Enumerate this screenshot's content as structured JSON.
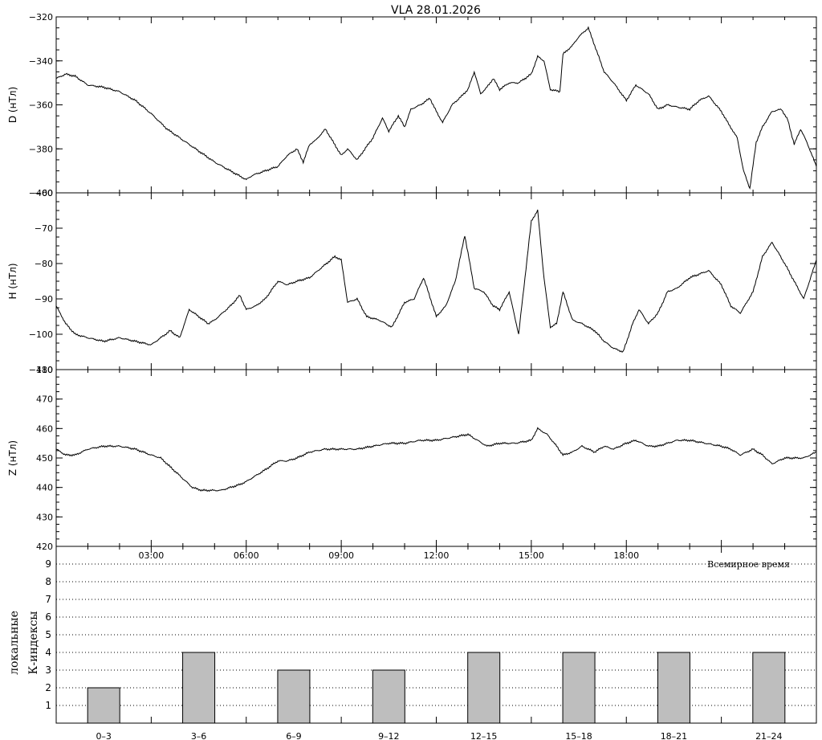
{
  "title": "VLA   28.01.2026",
  "chart_data": [
    {
      "type": "line",
      "ylabel": "D (нТл)",
      "ylim": [
        -400,
        -320
      ],
      "yticks": [
        -400,
        -380,
        -360,
        -340,
        -320
      ],
      "xlim": [
        0,
        24
      ],
      "series": [
        {
          "x": [
            0,
            0.3,
            0.6,
            1,
            1.5,
            2,
            2.5,
            3,
            3.5,
            4,
            4.5,
            5,
            5.5,
            6,
            6.2,
            6.4,
            6.6,
            7,
            7.3,
            7.6,
            7.8,
            8,
            8.2,
            8.5,
            9,
            9.2,
            9.5,
            10,
            10.3,
            10.5,
            10.8,
            11,
            11.2,
            11.5,
            11.8,
            12,
            12.2,
            12.5,
            12.8,
            13,
            13.2,
            13.4,
            13.6,
            13.8,
            14,
            14.3,
            14.6,
            15,
            15.2,
            15.4,
            15.6,
            15.9,
            16,
            16.3,
            16.5,
            16.8,
            17,
            17.3,
            17.6,
            18,
            18.3,
            18.7,
            19,
            19.3,
            19.6,
            20,
            20.3,
            20.6,
            21,
            21.2,
            21.5,
            21.7,
            21.9,
            22.1,
            22.3,
            22.6,
            22.9,
            23.1,
            23.3,
            23.5,
            23.7,
            24
          ],
          "y": [
            -348,
            -346,
            -347,
            -351,
            -352,
            -354,
            -358,
            -364,
            -371,
            -376,
            -381,
            -386,
            -390,
            -394,
            -392,
            -391,
            -390,
            -388,
            -383,
            -380,
            -386,
            -378,
            -376,
            -371,
            -383,
            -380,
            -385,
            -375,
            -366,
            -372,
            -365,
            -370,
            -362,
            -360,
            -357,
            -363,
            -368,
            -360,
            -356,
            -353,
            -345,
            -355,
            -352,
            -348,
            -353,
            -350,
            -350,
            -346,
            -338,
            -340,
            -353,
            -354,
            -337,
            -333,
            -329,
            -325,
            -333,
            -345,
            -350,
            -358,
            -351,
            -355,
            -362,
            -360,
            -361,
            -362,
            -358,
            -356,
            -363,
            -368,
            -375,
            -390,
            -398,
            -377,
            -370,
            -363,
            -362,
            -367,
            -378,
            -371,
            -377,
            -388
          ]
        }
      ]
    },
    {
      "type": "line",
      "ylabel": "H (нТл)",
      "ylim": [
        -110,
        -60
      ],
      "yticks": [
        -110,
        -100,
        -90,
        -80,
        -70,
        -60
      ],
      "xlim": [
        0,
        24
      ],
      "series": [
        {
          "x": [
            0,
            0.3,
            0.6,
            1,
            1.5,
            2,
            2.5,
            3,
            3.3,
            3.6,
            3.9,
            4.2,
            4.5,
            4.8,
            5,
            5.5,
            5.8,
            6,
            6.3,
            6.6,
            7,
            7.3,
            7.6,
            8,
            8.4,
            8.8,
            9,
            9.2,
            9.5,
            9.8,
            10.2,
            10.6,
            11,
            11.3,
            11.6,
            12,
            12.3,
            12.6,
            12.9,
            13.2,
            13.5,
            13.8,
            14,
            14.3,
            14.6,
            15,
            15.2,
            15.4,
            15.6,
            15.8,
            16,
            16.3,
            16.6,
            17,
            17.3,
            17.6,
            17.9,
            18.2,
            18.4,
            18.7,
            19,
            19.3,
            19.6,
            20,
            20.3,
            20.6,
            21,
            21.3,
            21.6,
            22,
            22.3,
            22.6,
            23,
            23.3,
            23.6,
            24
          ],
          "y": [
            -92,
            -97,
            -100,
            -101,
            -102,
            -101,
            -102,
            -103,
            -101,
            -99,
            -101,
            -93,
            -95,
            -97,
            -96,
            -92,
            -89,
            -93,
            -92,
            -90,
            -85,
            -86,
            -85,
            -84,
            -81,
            -78,
            -79,
            -91,
            -90,
            -95,
            -96,
            -98,
            -91,
            -90,
            -84,
            -95,
            -92,
            -85,
            -72,
            -87,
            -88,
            -92,
            -93,
            -88,
            -100,
            -68,
            -65,
            -84,
            -98,
            -97,
            -88,
            -96,
            -97,
            -99,
            -102,
            -104,
            -105,
            -97,
            -93,
            -97,
            -94,
            -88,
            -87,
            -84,
            -83,
            -82,
            -86,
            -92,
            -94,
            -88,
            -78,
            -74,
            -80,
            -85,
            -90,
            -79
          ]
        }
      ]
    },
    {
      "type": "line",
      "ylabel": "Z (нТл)",
      "ylim": [
        420,
        480
      ],
      "yticks": [
        420,
        430,
        440,
        450,
        460,
        470,
        480
      ],
      "xlim": [
        0,
        24
      ],
      "series": [
        {
          "x": [
            0,
            0.3,
            0.6,
            1,
            1.5,
            2,
            2.5,
            3,
            3.3,
            3.6,
            4,
            4.3,
            4.6,
            4.9,
            5.2,
            5.5,
            5.8,
            6,
            6.3,
            6.6,
            7,
            7.3,
            7.6,
            8,
            8.5,
            9,
            9.5,
            10,
            10.5,
            11,
            11.5,
            12,
            12.5,
            13,
            13.3,
            13.6,
            14,
            14.5,
            15,
            15.2,
            15.5,
            15.8,
            16,
            16.3,
            16.6,
            17,
            17.3,
            17.6,
            18,
            18.3,
            18.7,
            19,
            19.3,
            19.6,
            20,
            20.5,
            21,
            21.3,
            21.6,
            22,
            22.3,
            22.6,
            23,
            23.3,
            23.6,
            24
          ],
          "y": [
            453,
            451,
            451,
            453,
            454,
            454,
            453,
            451,
            450,
            447,
            443,
            440,
            439,
            439,
            439,
            440,
            441,
            442,
            444,
            446,
            449,
            449,
            450,
            452,
            453,
            453,
            453,
            454,
            455,
            455,
            456,
            456,
            457,
            458,
            456,
            454,
            455,
            455,
            456,
            460,
            458,
            454,
            451,
            452,
            454,
            452,
            454,
            453,
            455,
            456,
            454,
            454,
            455,
            456,
            456,
            455,
            454,
            453,
            451,
            453,
            451,
            448,
            450,
            450,
            450,
            452
          ]
        }
      ]
    },
    {
      "type": "bar",
      "title": "",
      "ylabel": "локальные К-индексы",
      "xlabel": "Всемирное время",
      "categories": [
        "0–3",
        "3–6",
        "6–9",
        "9–12",
        "12–15",
        "15–18",
        "18–21",
        "21–24"
      ],
      "values": [
        2,
        4,
        3,
        3,
        4,
        4,
        4,
        4
      ],
      "ylim": [
        0,
        10
      ],
      "yticks": [
        1,
        2,
        3,
        4,
        5,
        6,
        7,
        8,
        9
      ],
      "grid": "dotted horizontal",
      "bar_color": "#bebebe"
    }
  ],
  "time_axis": {
    "labels": [
      "03:00",
      "06:00",
      "09:00",
      "12:00",
      "15:00",
      "18:00"
    ],
    "values": [
      3,
      6,
      9,
      12,
      15,
      18
    ]
  }
}
